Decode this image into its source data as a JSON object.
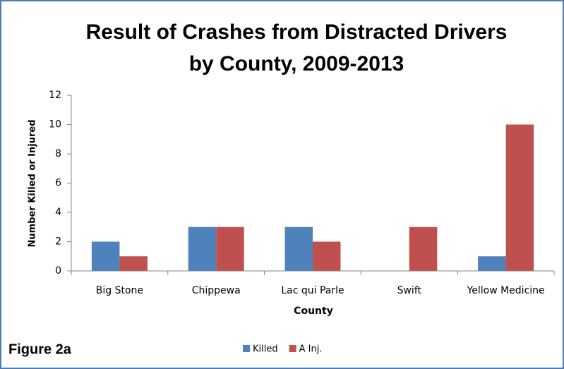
{
  "chart_data": {
    "type": "bar",
    "title": [
      "Result of Crashes from Distracted Drivers",
      "by County, 2009-2013"
    ],
    "annotation": "Figure 2a",
    "x_label": "County",
    "y_label": "Number Killed or Injured",
    "categories": [
      "Big Stone",
      "Chippewa",
      "Lac qui Parle",
      "Swift",
      "Yellow Medicine"
    ],
    "series": [
      {
        "name": "Killed",
        "color": "#4f81bd",
        "values": [
          2,
          3,
          3,
          0,
          1
        ]
      },
      {
        "name": "A Inj.",
        "color": "#c0504d",
        "values": [
          1,
          3,
          2,
          3,
          10
        ]
      }
    ],
    "ylim": [
      0,
      12
    ],
    "yticks": [
      0,
      2,
      4,
      6,
      8,
      10,
      12
    ],
    "grid": false,
    "legend": "bottom"
  }
}
